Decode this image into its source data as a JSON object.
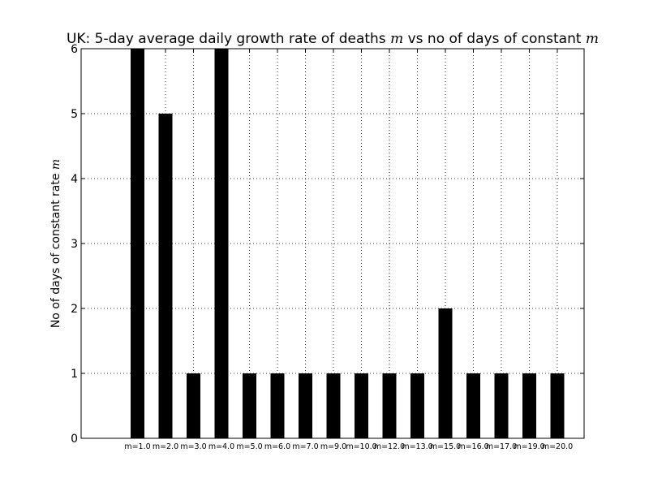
{
  "chart_data": {
    "type": "bar",
    "title_prefix": "UK: 5-day average daily growth rate of deaths ",
    "title_math": "m",
    "title_middle": " vs no of days of constant ",
    "title_math_end": "m",
    "ylabel_prefix": "No of days of constant rate ",
    "ylabel_math": "m",
    "xlabel": "",
    "categories": [
      "m=1.0",
      "m=2.0",
      "m=3.0",
      "m=4.0",
      "m=5.0",
      "m=6.0",
      "m=7.0",
      "m=9.0",
      "m=10.0",
      "m=12.0",
      "m=13.0",
      "m=15.0",
      "m=16.0",
      "m=17.0",
      "m=19.0",
      "m=20.0"
    ],
    "values": [
      6,
      5,
      1,
      6,
      1,
      1,
      1,
      1,
      1,
      1,
      1,
      2,
      1,
      1,
      1,
      1
    ],
    "ylim": [
      0,
      6
    ],
    "yticks": [
      "0",
      "1",
      "2",
      "3",
      "4",
      "5",
      "6"
    ],
    "grid": true,
    "bar_color": "#000000"
  }
}
